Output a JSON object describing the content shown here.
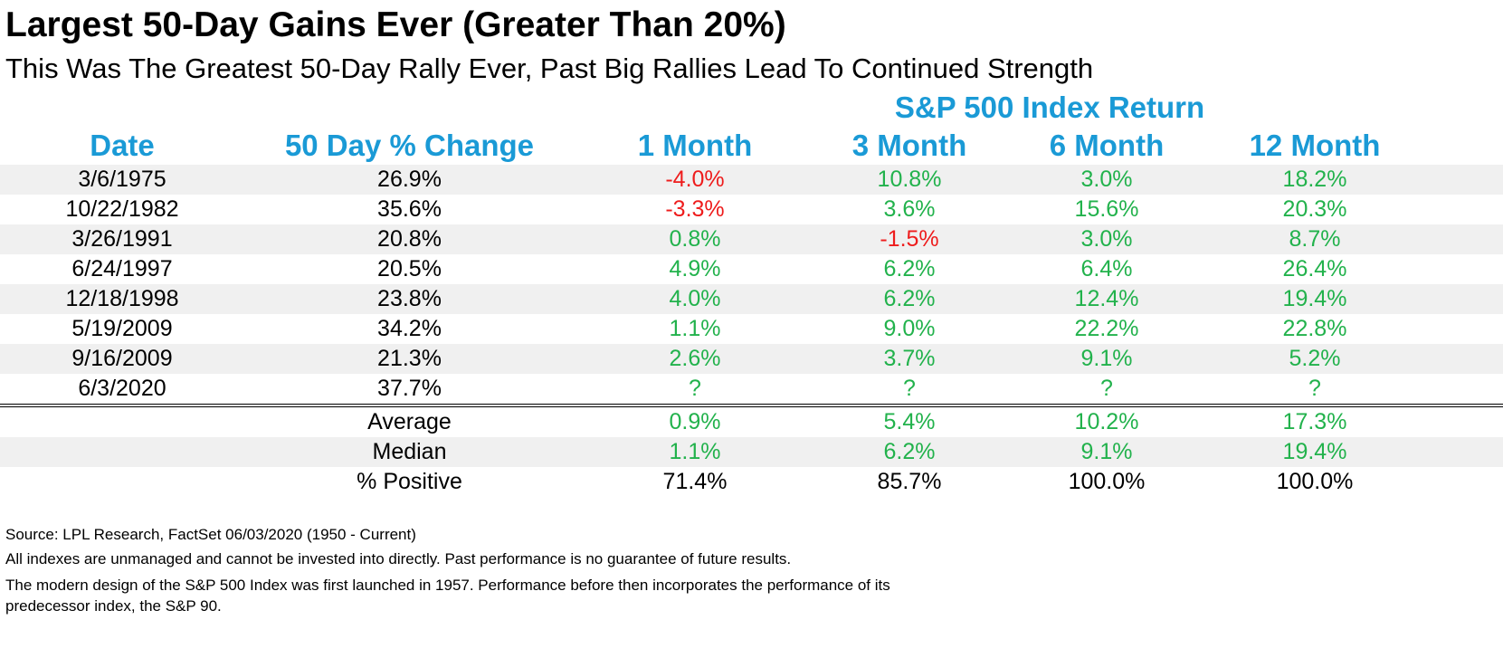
{
  "title": "Largest 50-Day Gains Ever (Greater Than 20%)",
  "subtitle": "This Was The Greatest 50-Day Rally Ever, Past Big Rallies Lead To Continued Strength",
  "colors": {
    "header": "#1a9ad6",
    "positive": "#22b24c",
    "negative": "#ee1c1c",
    "neutral": "#000000",
    "shade": "#f0f0f0"
  },
  "chart_data": {
    "type": "table",
    "group_header": "S&P 500 Index Return",
    "columns": [
      "Date",
      "50 Day % Change",
      "1 Month",
      "3 Month",
      "6 Month",
      "12 Month"
    ],
    "rows": [
      {
        "date": "3/6/1975",
        "change": "26.9%",
        "returns": [
          {
            "text": "-4.0%",
            "sign": "neg"
          },
          {
            "text": "10.8%",
            "sign": "pos"
          },
          {
            "text": "3.0%",
            "sign": "pos"
          },
          {
            "text": "18.2%",
            "sign": "pos"
          }
        ]
      },
      {
        "date": "10/22/1982",
        "change": "35.6%",
        "returns": [
          {
            "text": "-3.3%",
            "sign": "neg"
          },
          {
            "text": "3.6%",
            "sign": "pos"
          },
          {
            "text": "15.6%",
            "sign": "pos"
          },
          {
            "text": "20.3%",
            "sign": "pos"
          }
        ]
      },
      {
        "date": "3/26/1991",
        "change": "20.8%",
        "returns": [
          {
            "text": "0.8%",
            "sign": "pos"
          },
          {
            "text": "-1.5%",
            "sign": "neg"
          },
          {
            "text": "3.0%",
            "sign": "pos"
          },
          {
            "text": "8.7%",
            "sign": "pos"
          }
        ]
      },
      {
        "date": "6/24/1997",
        "change": "20.5%",
        "returns": [
          {
            "text": "4.9%",
            "sign": "pos"
          },
          {
            "text": "6.2%",
            "sign": "pos"
          },
          {
            "text": "6.4%",
            "sign": "pos"
          },
          {
            "text": "26.4%",
            "sign": "pos"
          }
        ]
      },
      {
        "date": "12/18/1998",
        "change": "23.8%",
        "returns": [
          {
            "text": "4.0%",
            "sign": "pos"
          },
          {
            "text": "6.2%",
            "sign": "pos"
          },
          {
            "text": "12.4%",
            "sign": "pos"
          },
          {
            "text": "19.4%",
            "sign": "pos"
          }
        ]
      },
      {
        "date": "5/19/2009",
        "change": "34.2%",
        "returns": [
          {
            "text": "1.1%",
            "sign": "pos"
          },
          {
            "text": "9.0%",
            "sign": "pos"
          },
          {
            "text": "22.2%",
            "sign": "pos"
          },
          {
            "text": "22.8%",
            "sign": "pos"
          }
        ]
      },
      {
        "date": "9/16/2009",
        "change": "21.3%",
        "returns": [
          {
            "text": "2.6%",
            "sign": "pos"
          },
          {
            "text": "3.7%",
            "sign": "pos"
          },
          {
            "text": "9.1%",
            "sign": "pos"
          },
          {
            "text": "5.2%",
            "sign": "pos"
          }
        ]
      },
      {
        "date": "6/3/2020",
        "change": "37.7%",
        "returns": [
          {
            "text": "?",
            "sign": "pos"
          },
          {
            "text": "?",
            "sign": "pos"
          },
          {
            "text": "?",
            "sign": "pos"
          },
          {
            "text": "?",
            "sign": "pos"
          }
        ]
      }
    ],
    "summary": [
      {
        "label": "Average",
        "returns": [
          {
            "text": "0.9%",
            "sign": "pos"
          },
          {
            "text": "5.4%",
            "sign": "pos"
          },
          {
            "text": "10.2%",
            "sign": "pos"
          },
          {
            "text": "17.3%",
            "sign": "pos"
          }
        ]
      },
      {
        "label": "Median",
        "returns": [
          {
            "text": "1.1%",
            "sign": "pos"
          },
          {
            "text": "6.2%",
            "sign": "pos"
          },
          {
            "text": "9.1%",
            "sign": "pos"
          },
          {
            "text": "19.4%",
            "sign": "pos"
          }
        ]
      },
      {
        "label": "% Positive",
        "returns": [
          {
            "text": "71.4%",
            "sign": "neutral"
          },
          {
            "text": "85.7%",
            "sign": "neutral"
          },
          {
            "text": "100.0%",
            "sign": "neutral"
          },
          {
            "text": "100.0%",
            "sign": "neutral"
          }
        ]
      }
    ]
  },
  "footnotes": [
    "Source: LPL Research, FactSet 06/03/2020 (1950 - Current)",
    "All indexes are unmanaged and cannot be invested into directly. Past performance is no guarantee of future results.",
    "The modern design of the S&P 500 Index was first launched in 1957. Performance before then incorporates the performance of its",
    "predecessor index, the S&P 90."
  ]
}
